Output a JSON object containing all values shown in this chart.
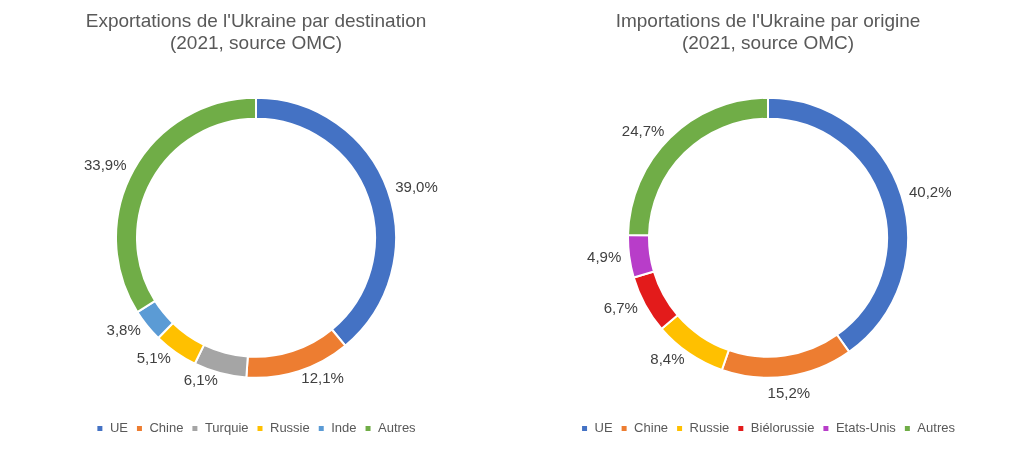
{
  "chart_data": [
    {
      "type": "donut",
      "title": [
        "Exportations de l'Ukraine par destination",
        "(2021, source OMC)"
      ],
      "categories": [
        "UE",
        "Chine",
        "Turquie",
        "Russie",
        "Inde",
        "Autres"
      ],
      "values": [
        39.0,
        12.1,
        6.1,
        5.1,
        3.8,
        33.9
      ],
      "colors": [
        "#4472c4",
        "#ed7d31",
        "#a5a5a5",
        "#ffc000",
        "#5b9bd5",
        "#70ad47"
      ],
      "value_labels": [
        "39,0%",
        "12,1%",
        "6,1%",
        "5,1%",
        "3,8%",
        "33,9%"
      ],
      "legend": "bottom"
    },
    {
      "type": "donut",
      "title": [
        "Importations de l'Ukraine par origine",
        "(2021, source OMC)"
      ],
      "categories": [
        "UE",
        "Chine",
        "Russie",
        "Biélorussie",
        "Etats-Unis",
        "Autres"
      ],
      "values": [
        40.2,
        15.2,
        8.4,
        6.7,
        4.9,
        24.7
      ],
      "colors": [
        "#4472c4",
        "#ed7d31",
        "#ffc000",
        "#e31b1b",
        "#b83dc9",
        "#70ad47"
      ],
      "value_labels": [
        "40,2%",
        "15,2%",
        "8,4%",
        "6,7%",
        "4,9%",
        "24,7%"
      ],
      "legend": "bottom"
    }
  ]
}
